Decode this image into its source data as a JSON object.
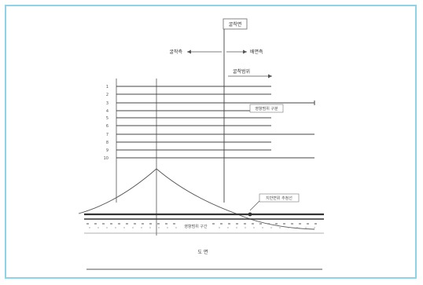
{
  "diagram": {
    "labels": {
      "top_box": "굴착면",
      "left_arrow": "굴착측",
      "right_arrow": "배면측",
      "upper_right": "굴착범위",
      "middle_right": "영향범위 구분",
      "lower_right": "지반변위 추정선",
      "center_bottom": "영향범위 구간",
      "bottom_label": "도 면"
    },
    "layer_numbers": [
      "1",
      "2",
      "3",
      "4",
      "5",
      "6",
      "7",
      "8",
      "9",
      "10"
    ],
    "colors": {
      "frame_border": "#8fd3e6",
      "lines": "#444444",
      "background": "#ffffff"
    }
  }
}
